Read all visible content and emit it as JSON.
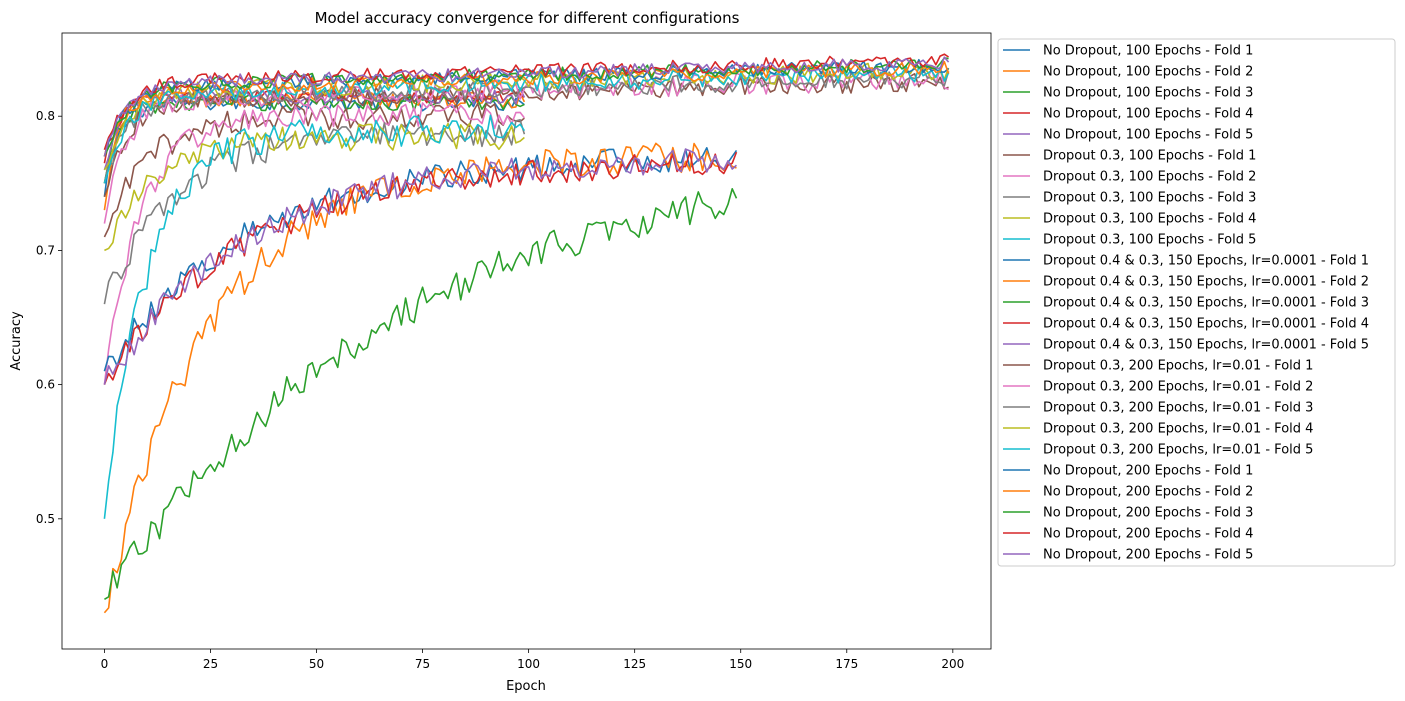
{
  "chart_data": {
    "type": "line",
    "title": "Model accuracy convergence for different configurations",
    "xlabel": "Epoch",
    "ylabel": "Accuracy",
    "xlim": [
      -10,
      209
    ],
    "ylim": [
      0.403,
      0.862
    ],
    "xticks": [
      0,
      25,
      50,
      75,
      100,
      125,
      150,
      175,
      200
    ],
    "yticks": [
      0.5,
      0.6,
      0.7,
      0.8
    ],
    "ytick_labels": [
      "0.5",
      "0.6",
      "0.7",
      "0.8"
    ],
    "grid": false,
    "legend_position": "outside right",
    "series": [
      {
        "name": "No Dropout, 100 Epochs - Fold 1",
        "color": "#1f77b4",
        "epochs": 100,
        "start": 0.74,
        "plateau": 0.81,
        "rate": 0.3,
        "noise": 0.006
      },
      {
        "name": "No Dropout, 100 Epochs - Fold 2",
        "color": "#ff7f0e",
        "epochs": 100,
        "start": 0.73,
        "plateau": 0.812,
        "rate": 0.35,
        "noise": 0.006
      },
      {
        "name": "No Dropout, 100 Epochs - Fold 3",
        "color": "#2ca02c",
        "epochs": 100,
        "start": 0.75,
        "plateau": 0.81,
        "rate": 0.3,
        "noise": 0.006
      },
      {
        "name": "No Dropout, 100 Epochs - Fold 4",
        "color": "#d62728",
        "epochs": 100,
        "start": 0.765,
        "plateau": 0.815,
        "rate": 0.3,
        "noise": 0.005
      },
      {
        "name": "No Dropout, 100 Epochs - Fold 5",
        "color": "#9467bd",
        "epochs": 100,
        "start": 0.76,
        "plateau": 0.815,
        "rate": 0.3,
        "noise": 0.006
      },
      {
        "name": "Dropout 0.3, 100 Epochs - Fold 1",
        "color": "#8c564b",
        "epochs": 100,
        "start": 0.71,
        "plateau": 0.8,
        "rate": 0.1,
        "noise": 0.01
      },
      {
        "name": "Dropout 0.3, 100 Epochs - Fold 2",
        "color": "#e377c2",
        "epochs": 100,
        "start": 0.6,
        "plateau": 0.8,
        "rate": 0.12,
        "noise": 0.01
      },
      {
        "name": "Dropout 0.3, 100 Epochs - Fold 3",
        "color": "#7f7f7f",
        "epochs": 100,
        "start": 0.66,
        "plateau": 0.788,
        "rate": 0.06,
        "noise": 0.01
      },
      {
        "name": "Dropout 0.3, 100 Epochs - Fold 4",
        "color": "#bcbd22",
        "epochs": 100,
        "start": 0.7,
        "plateau": 0.785,
        "rate": 0.08,
        "noise": 0.01
      },
      {
        "name": "Dropout 0.3, 100 Epochs - Fold 5",
        "color": "#17becf",
        "epochs": 100,
        "start": 0.5,
        "plateau": 0.79,
        "rate": 0.1,
        "noise": 0.012
      },
      {
        "name": "Dropout 0.4 & 0.3, 150 Epochs, lr=0.0001 - Fold 1",
        "color": "#1f77b4",
        "epochs": 150,
        "start": 0.61,
        "plateau": 0.77,
        "rate": 0.03,
        "noise": 0.01
      },
      {
        "name": "Dropout 0.4 & 0.3, 150 Epochs, lr=0.0001 - Fold 2",
        "color": "#ff7f0e",
        "epochs": 150,
        "start": 0.43,
        "plateau": 0.77,
        "rate": 0.04,
        "noise": 0.012
      },
      {
        "name": "Dropout 0.4 & 0.3, 150 Epochs, lr=0.0001 - Fold 3",
        "color": "#2ca02c",
        "epochs": 150,
        "start": 0.44,
        "plateau": 0.78,
        "rate": 0.014,
        "noise": 0.012
      },
      {
        "name": "Dropout 0.4 & 0.3, 150 Epochs, lr=0.0001 - Fold 4",
        "color": "#d62728",
        "epochs": 150,
        "start": 0.6,
        "plateau": 0.767,
        "rate": 0.03,
        "noise": 0.01
      },
      {
        "name": "Dropout 0.4 & 0.3, 150 Epochs, lr=0.0001 - Fold 5",
        "color": "#9467bd",
        "epochs": 150,
        "start": 0.6,
        "plateau": 0.77,
        "rate": 0.03,
        "noise": 0.01
      },
      {
        "name": "Dropout 0.3, 200 Epochs, lr=0.01 - Fold 1",
        "color": "#8c564b",
        "epochs": 200,
        "start": 0.74,
        "plateau": 0.81,
        "rate": 0.2,
        "noise": 0.007
      },
      {
        "name": "Dropout 0.3, 200 Epochs, lr=0.01 - Fold 2",
        "color": "#e377c2",
        "epochs": 200,
        "start": 0.72,
        "plateau": 0.812,
        "rate": 0.2,
        "noise": 0.008
      },
      {
        "name": "Dropout 0.3, 200 Epochs, lr=0.01 - Fold 3",
        "color": "#7f7f7f",
        "epochs": 200,
        "start": 0.75,
        "plateau": 0.813,
        "rate": 0.2,
        "noise": 0.007
      },
      {
        "name": "Dropout 0.3, 200 Epochs, lr=0.01 - Fold 4",
        "color": "#bcbd22",
        "epochs": 200,
        "start": 0.76,
        "plateau": 0.818,
        "rate": 0.2,
        "noise": 0.007
      },
      {
        "name": "Dropout 0.3, 200 Epochs, lr=0.01 - Fold 5",
        "color": "#17becf",
        "epochs": 200,
        "start": 0.75,
        "plateau": 0.817,
        "rate": 0.2,
        "noise": 0.007
      },
      {
        "name": "No Dropout, 200 Epochs - Fold 1",
        "color": "#1f77b4",
        "epochs": 200,
        "start": 0.77,
        "plateau": 0.822,
        "rate": 0.2,
        "noise": 0.005
      },
      {
        "name": "No Dropout, 200 Epochs - Fold 2",
        "color": "#ff7f0e",
        "epochs": 200,
        "start": 0.77,
        "plateau": 0.82,
        "rate": 0.2,
        "noise": 0.005
      },
      {
        "name": "No Dropout, 200 Epochs - Fold 3",
        "color": "#2ca02c",
        "epochs": 200,
        "start": 0.77,
        "plateau": 0.823,
        "rate": 0.2,
        "noise": 0.005
      },
      {
        "name": "No Dropout, 200 Epochs - Fold 4",
        "color": "#d62728",
        "epochs": 200,
        "start": 0.775,
        "plateau": 0.826,
        "rate": 0.2,
        "noise": 0.005
      },
      {
        "name": "No Dropout, 200 Epochs - Fold 5",
        "color": "#9467bd",
        "epochs": 200,
        "start": 0.77,
        "plateau": 0.824,
        "rate": 0.2,
        "noise": 0.005
      }
    ]
  }
}
